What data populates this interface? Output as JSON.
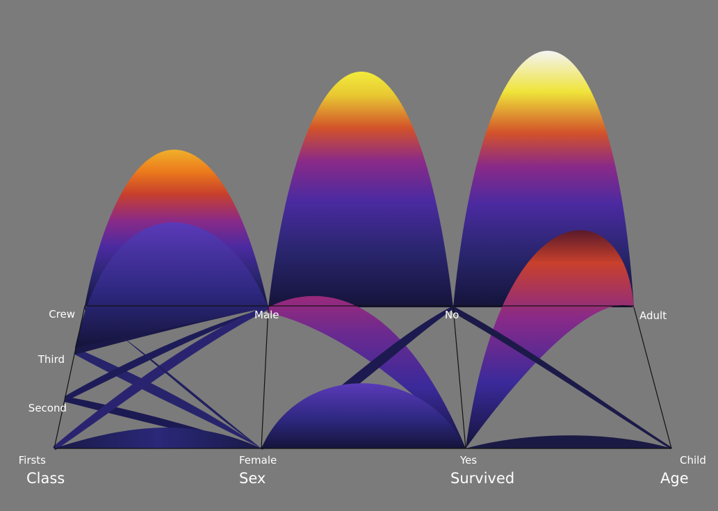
{
  "axes": [
    {
      "name": "Class",
      "categories": [
        "Firsts",
        "Second",
        "Third",
        "Crew"
      ]
    },
    {
      "name": "Sex",
      "categories": [
        "Female",
        "Male"
      ]
    },
    {
      "name": "Survived",
      "categories": [
        "Yes",
        "No"
      ]
    },
    {
      "name": "Age",
      "categories": [
        "Child",
        "Adult"
      ]
    }
  ],
  "colors": {
    "background": "#7b7b7b",
    "ribbon_dark": "#14143a",
    "ribbon_blue": "#3a2f9a",
    "ribbon_purple": "#7a2a8a",
    "ribbon_red": "#c8402c",
    "ribbon_orange": "#ec7a1c",
    "ribbon_yellow": "#efe83a",
    "ribbon_white": "#eeeeee"
  }
}
